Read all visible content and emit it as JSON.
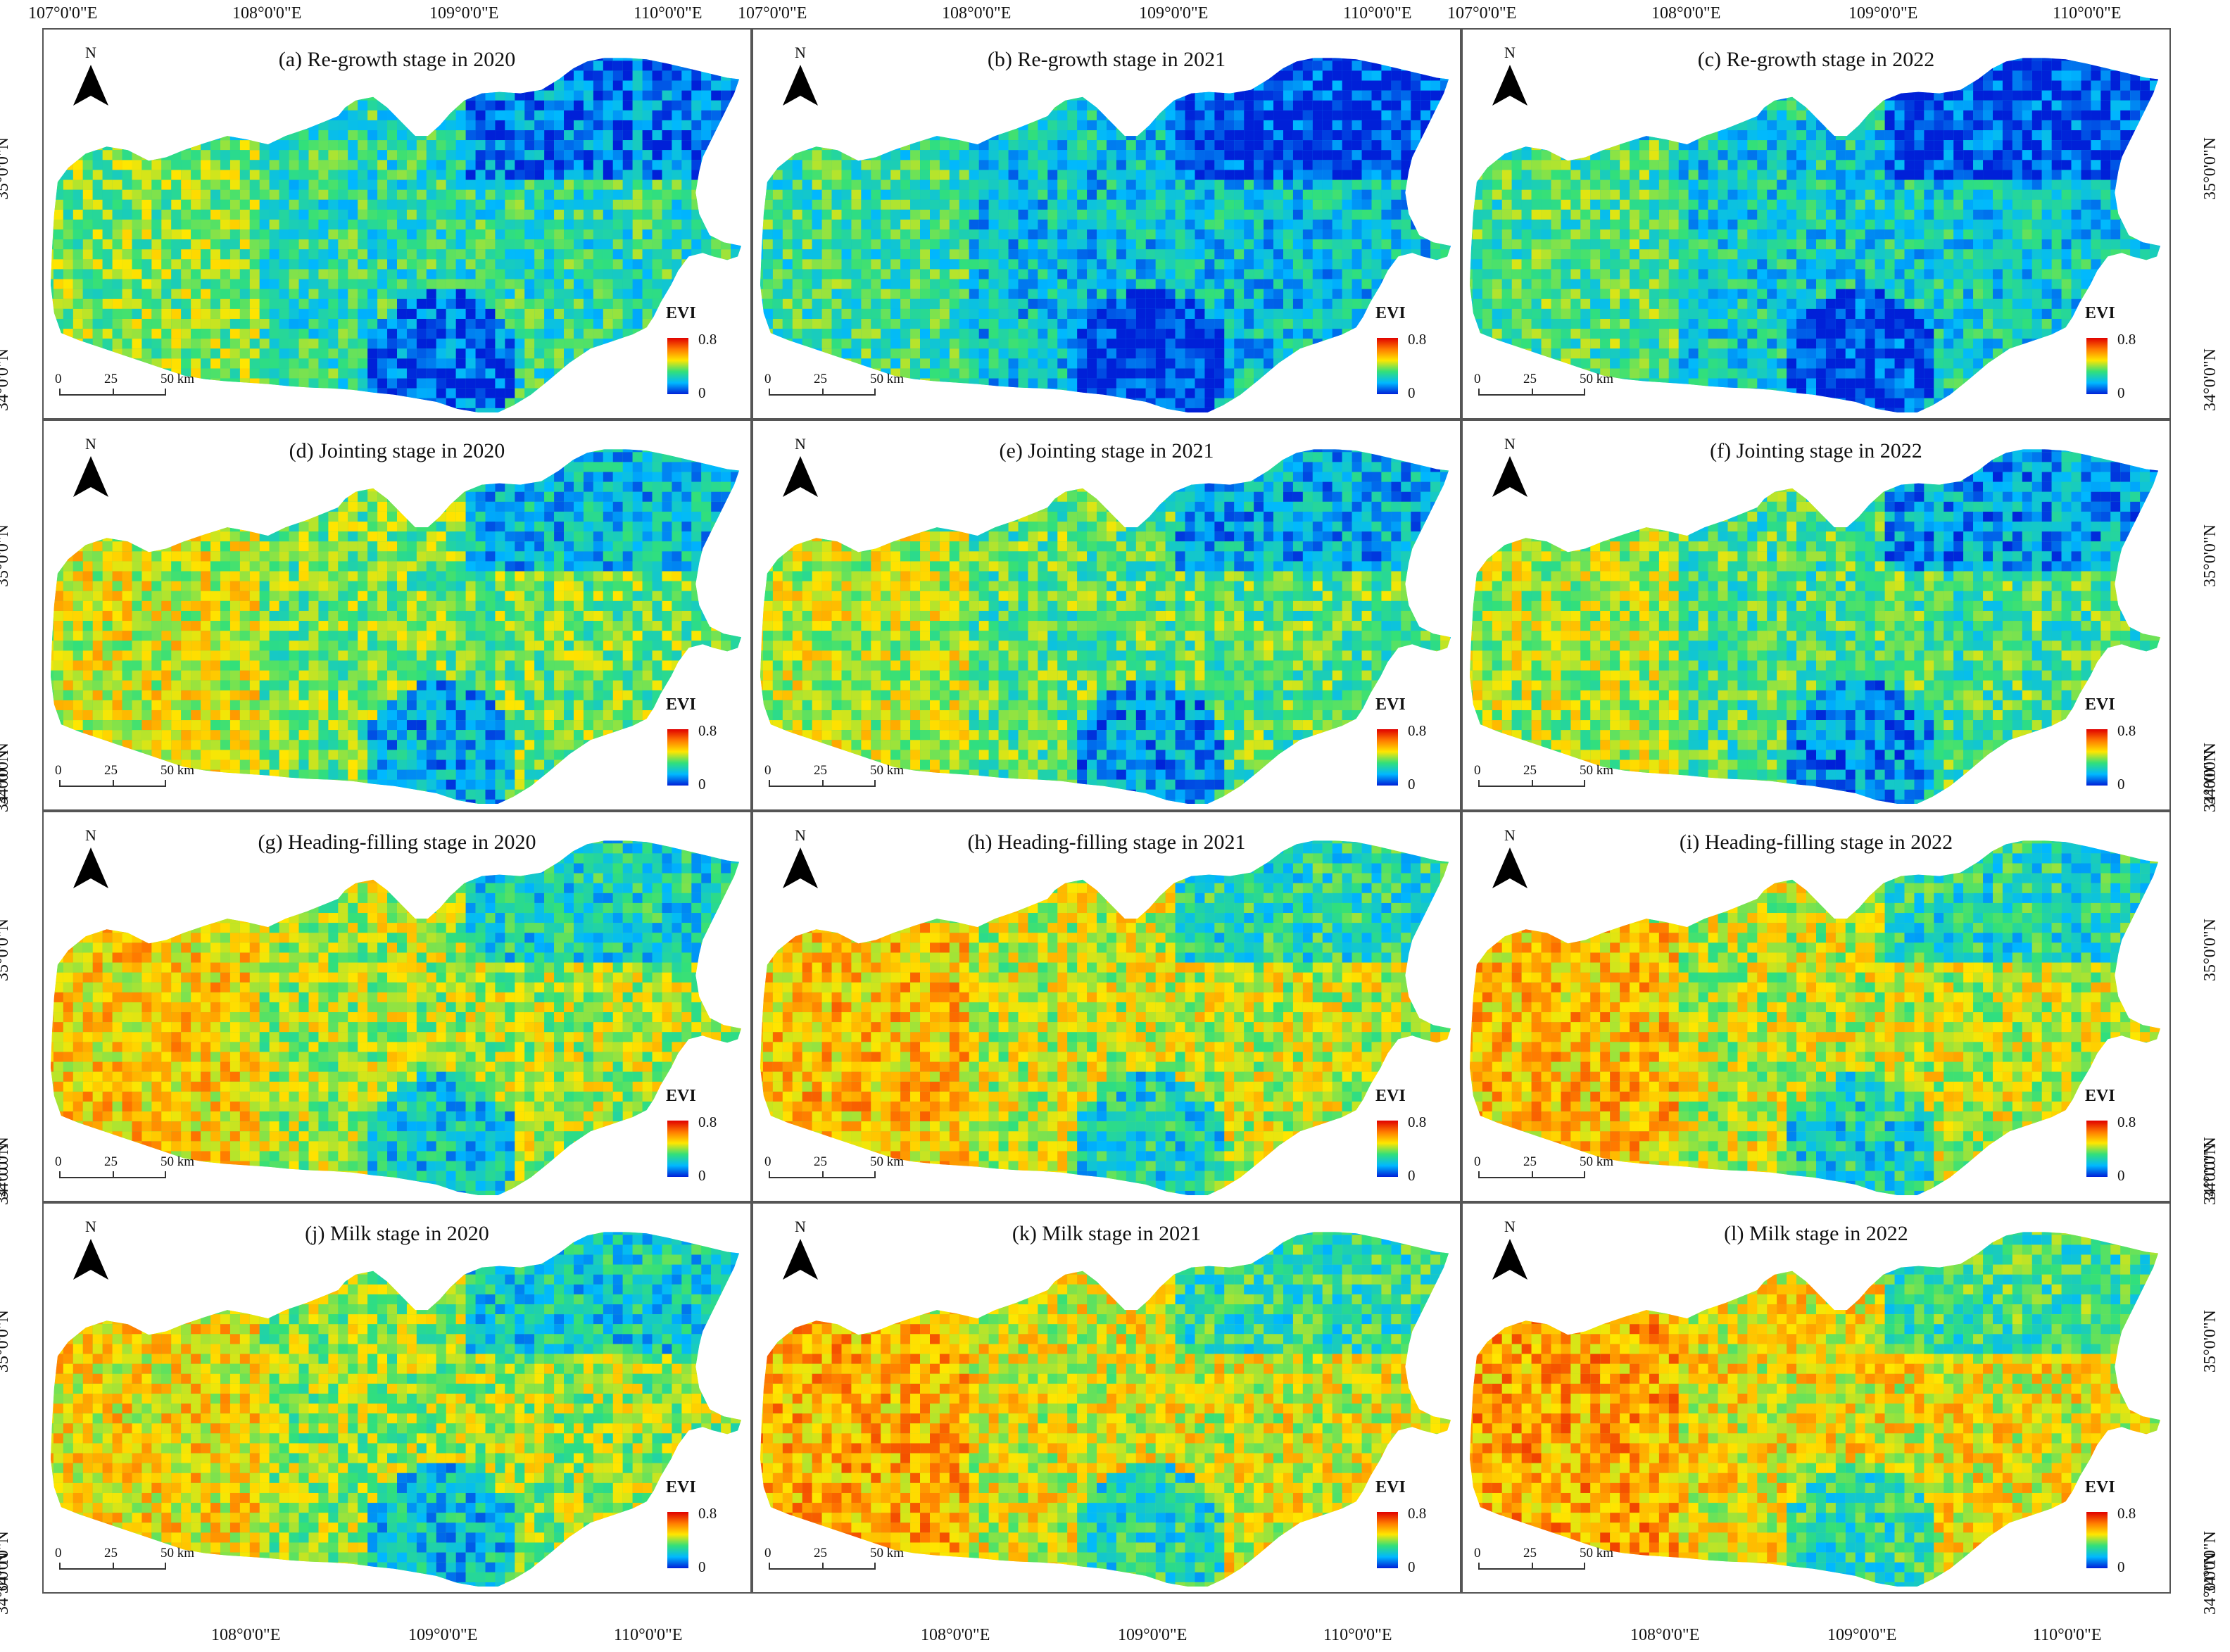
{
  "top_lon_labels": [
    "107°0'0\"E",
    "108°0'0\"E",
    "109°0'0\"E",
    "110°0'0\"E",
    "107°0'0\"E",
    "108°0'0\"E",
    "109°0'0\"E",
    "110°0'0\"E",
    "107°0'0\"E",
    "108°0'0\"E",
    "109°0'0\"E",
    "110°0'0\"E"
  ],
  "bottom_lon_labels": [
    "108°0'0\"E",
    "109°0'0\"E",
    "110°0'0\"E",
    "108°0'0\"E",
    "109°0'0\"E",
    "110°0'0\"E",
    "108°0'0\"E",
    "109°0'0\"E",
    "110°0'0\"E"
  ],
  "left_lat_labels": [
    "35°0'0\"N",
    "34°0'0\"N",
    "34°0'0\"N",
    "35°0'0\"N",
    "34°0'0\"N",
    "34°0'0\"N",
    "35°0'0\"N",
    "34°0'0\"N",
    "34°0'0\"N",
    "35°0'0\"N",
    "34°0'0\"N"
  ],
  "right_lat_labels": [
    "35°0'0\"N",
    "34°0'0\"N",
    "34°0'0\"N",
    "35°0'0\"N",
    "34°0'0\"N",
    "34°0'0\"N",
    "35°0'0\"N",
    "34°0'0\"N",
    "34°0'0\"N",
    "35°0'0\"N",
    "34°0'0\"N"
  ],
  "north_label": "N",
  "legend": {
    "title": "EVI",
    "max": "0.8",
    "min": "0"
  },
  "scale": {
    "t0": "0",
    "t1": "25",
    "t2": "50 km"
  },
  "colors": {
    "high": "#e00000",
    "mid_high": "#ff7a00",
    "mid": "#ffe600",
    "mid_low": "#32e07a",
    "low": "#00b8ff",
    "lowest": "#0020d8"
  },
  "panels": [
    {
      "title": "(a) Re-growth stage in 2020",
      "evi_level": 0.35
    },
    {
      "title": "(b) Re-growth stage in 2021",
      "evi_level": 0.25
    },
    {
      "title": "(c) Re-growth stage in 2022",
      "evi_level": 0.28
    },
    {
      "title": "(d) Jointing stage in 2020",
      "evi_level": 0.45
    },
    {
      "title": "(e) Jointing stage in 2021",
      "evi_level": 0.42
    },
    {
      "title": "(f) Jointing stage in 2022",
      "evi_level": 0.4
    },
    {
      "title": "(g) Heading-filling stage in 2020",
      "evi_level": 0.52
    },
    {
      "title": "(h) Heading-filling stage in 2021",
      "evi_level": 0.55
    },
    {
      "title": "(i) Heading-filling stage in 2022",
      "evi_level": 0.55
    },
    {
      "title": "(j) Milk stage in 2020",
      "evi_level": 0.5
    },
    {
      "title": "(k) Milk stage in 2021",
      "evi_level": 0.58
    },
    {
      "title": "(l) Milk stage in 2022",
      "evi_level": 0.6
    }
  ]
}
